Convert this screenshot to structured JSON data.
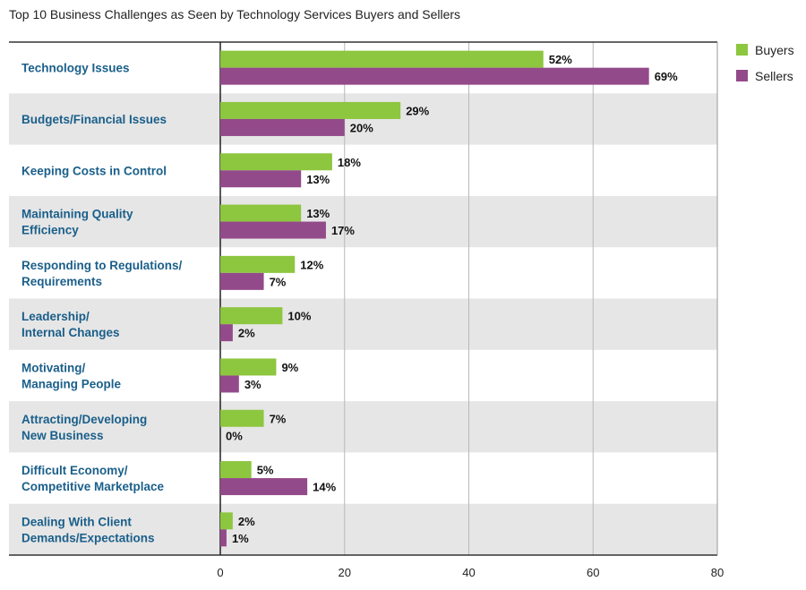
{
  "chart_data": {
    "type": "bar",
    "orientation": "horizontal",
    "title": "Top 10 Business Challenges as Seen by Technology Services Buyers and Sellers",
    "categories": [
      [
        "Technology Issues"
      ],
      [
        "Budgets/Financial Issues"
      ],
      [
        "Keeping Costs in Control"
      ],
      [
        "Maintaining Quality",
        "Efficiency"
      ],
      [
        "Responding to Regulations/",
        "Requirements"
      ],
      [
        "Leadership/",
        "Internal Changes"
      ],
      [
        "Motivating/",
        "Managing People"
      ],
      [
        "Attracting/Developing",
        "New Business"
      ],
      [
        "Difficult Economy/",
        "Competitive Marketplace"
      ],
      [
        "Dealing With Client",
        "Demands/Expectations"
      ]
    ],
    "series": [
      {
        "name": "Buyers",
        "color": "#8dc63f",
        "values": [
          52,
          29,
          18,
          13,
          12,
          10,
          9,
          7,
          5,
          2
        ]
      },
      {
        "name": "Sellers",
        "color": "#934a8a",
        "values": [
          69,
          20,
          13,
          17,
          7,
          2,
          3,
          0,
          14,
          1
        ]
      }
    ],
    "value_suffix": "%",
    "xlim": [
      0,
      80
    ],
    "xticks": [
      "0",
      "20",
      "40",
      "60",
      "80"
    ],
    "grid": true,
    "legend_position": "top-right",
    "category_label_color": "#1a5f8a",
    "band_color": "#e6e6e6"
  }
}
